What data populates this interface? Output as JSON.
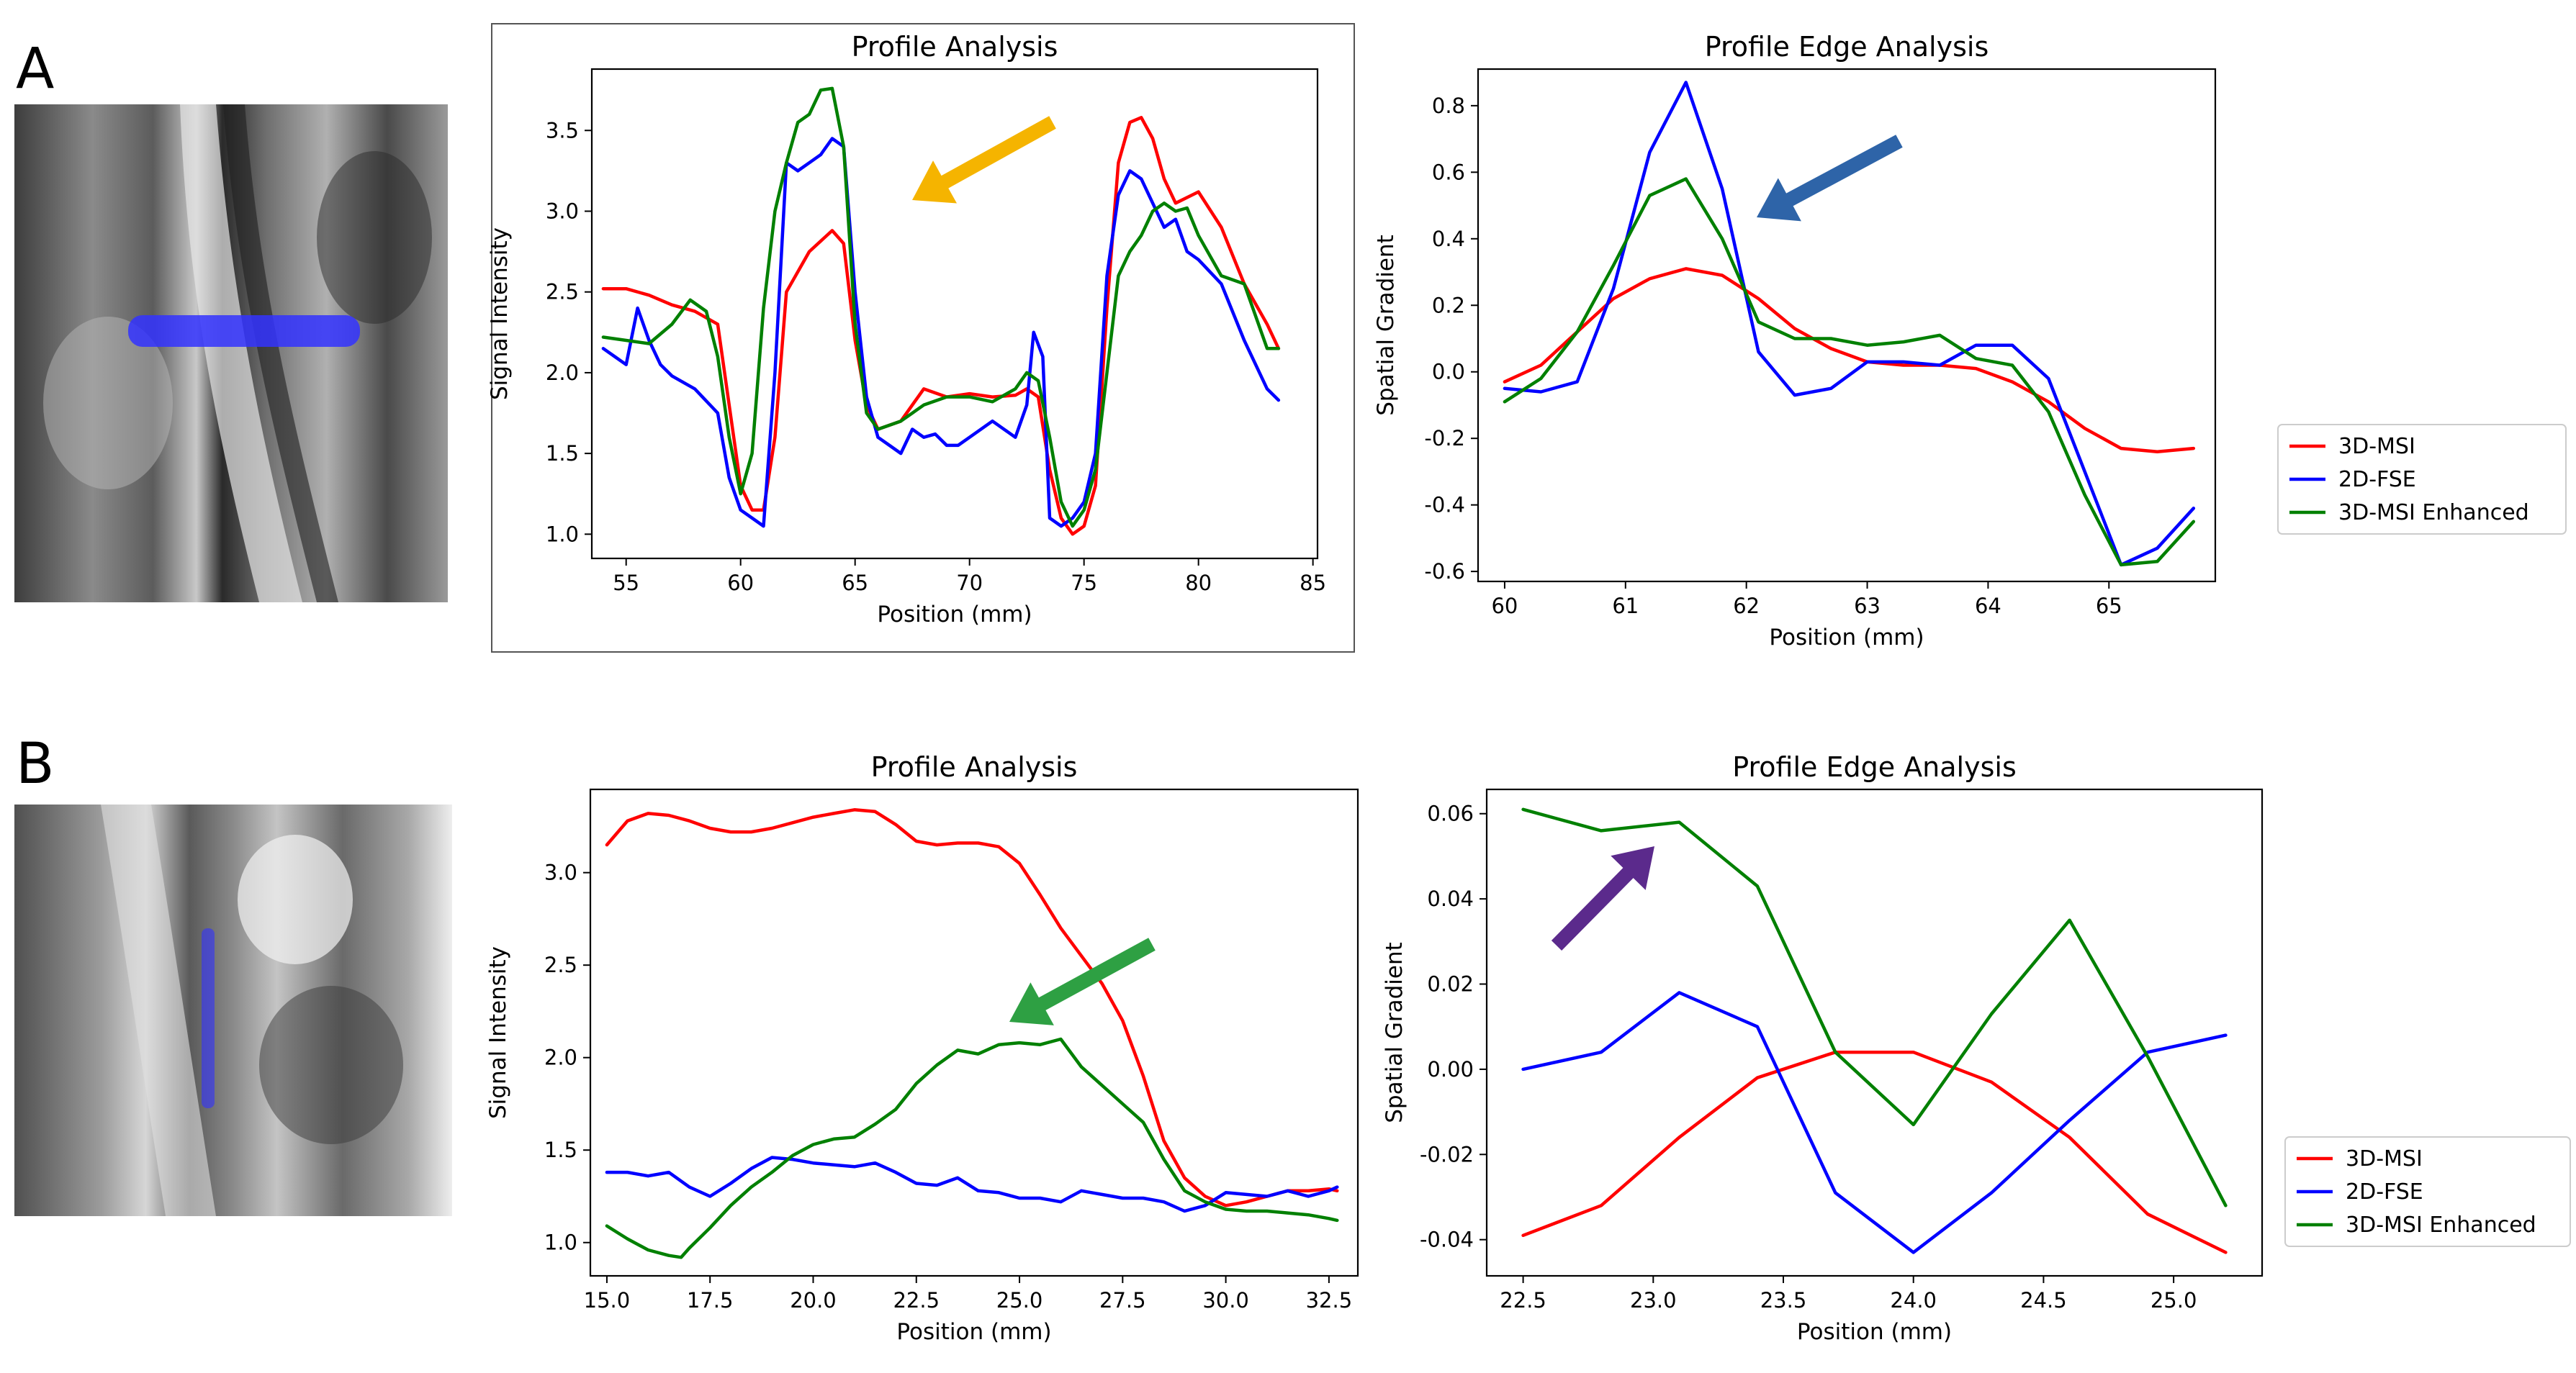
{
  "panels": {
    "a_label": "A",
    "b_label": "B"
  },
  "legend_labels": [
    "3D-MSI",
    "2D-FSE",
    "3D-MSI Enhanced"
  ],
  "colors": {
    "msi": "#ff0000",
    "fse": "#0000ff",
    "enhanced": "#008000",
    "arrow_orange": "#f5b400",
    "arrow_blue": "#2e64a8",
    "arrow_green": "#2ea043",
    "arrow_purple": "#5b2a8c",
    "profile_line": "#3232ff"
  },
  "chart_data": [
    {
      "id": "A1",
      "type": "line",
      "title": "Profile Analysis",
      "xlabel": "Position (mm)",
      "ylabel": "Signal Intensity",
      "xlim": [
        53.5,
        85.2
      ],
      "ylim": [
        0.85,
        3.88
      ],
      "xticks": [
        55,
        60,
        65,
        70,
        75,
        80,
        85
      ],
      "yticks": [
        1.0,
        1.5,
        2.0,
        2.5,
        3.0,
        3.5
      ],
      "legend": false,
      "series": [
        {
          "name": "3D-MSI",
          "color": "#ff0000",
          "x": [
            54,
            55,
            56,
            57,
            58,
            59,
            59.5,
            60,
            60.5,
            61,
            61.5,
            62,
            63,
            64,
            64.5,
            65,
            65.5,
            66,
            67,
            68,
            69,
            70,
            71,
            72,
            72.5,
            73,
            73.5,
            74,
            74.5,
            75,
            75.5,
            76,
            76.5,
            77,
            77.5,
            78,
            78.5,
            79,
            80,
            81,
            82,
            83,
            83.5
          ],
          "y": [
            2.52,
            2.52,
            2.48,
            2.42,
            2.38,
            2.3,
            1.8,
            1.3,
            1.15,
            1.15,
            1.6,
            2.5,
            2.75,
            2.88,
            2.8,
            2.2,
            1.8,
            1.65,
            1.7,
            1.9,
            1.85,
            1.87,
            1.85,
            1.86,
            1.9,
            1.85,
            1.4,
            1.1,
            1.0,
            1.05,
            1.3,
            2.4,
            3.3,
            3.55,
            3.58,
            3.45,
            3.2,
            3.05,
            3.12,
            2.9,
            2.55,
            2.3,
            2.15
          ]
        },
        {
          "name": "2D-FSE",
          "color": "#0000ff",
          "x": [
            54,
            54.5,
            55,
            55.5,
            56,
            56.5,
            57,
            58,
            59,
            59.5,
            60,
            60.5,
            61,
            61.5,
            62,
            62.5,
            63,
            63.5,
            64,
            64.5,
            65,
            65.5,
            66,
            66.5,
            67,
            67.5,
            68,
            68.5,
            69,
            69.5,
            70,
            71,
            72,
            72.5,
            72.8,
            73.2,
            73.5,
            74,
            74.5,
            75,
            75.5,
            76,
            76.5,
            77,
            77.5,
            78,
            78.5,
            79,
            79.5,
            80,
            81,
            82,
            83,
            83.5
          ],
          "y": [
            2.15,
            2.1,
            2.05,
            2.4,
            2.2,
            2.05,
            1.98,
            1.9,
            1.75,
            1.35,
            1.15,
            1.1,
            1.05,
            2.0,
            3.3,
            3.25,
            3.3,
            3.35,
            3.45,
            3.4,
            2.5,
            1.85,
            1.6,
            1.55,
            1.5,
            1.65,
            1.6,
            1.62,
            1.55,
            1.55,
            1.6,
            1.7,
            1.6,
            1.8,
            2.25,
            2.1,
            1.1,
            1.05,
            1.1,
            1.2,
            1.5,
            2.6,
            3.1,
            3.25,
            3.2,
            3.05,
            2.9,
            2.95,
            2.75,
            2.7,
            2.55,
            2.2,
            1.9,
            1.83
          ]
        },
        {
          "name": "3D-MSI Enhanced",
          "color": "#008000",
          "x": [
            54,
            55,
            56,
            57,
            57.8,
            58.5,
            59,
            59.5,
            60,
            60.5,
            61,
            61.5,
            62,
            62.5,
            63,
            63.5,
            64,
            64.5,
            65,
            65.5,
            66,
            67,
            68,
            69,
            70,
            71,
            72,
            72.5,
            73,
            73.5,
            74,
            74.5,
            75,
            75.5,
            76,
            76.5,
            77,
            77.5,
            78,
            78.5,
            79,
            79.5,
            80,
            81,
            82,
            83,
            83.5
          ],
          "y": [
            2.22,
            2.2,
            2.18,
            2.3,
            2.45,
            2.38,
            2.1,
            1.6,
            1.25,
            1.5,
            2.4,
            3.0,
            3.3,
            3.55,
            3.6,
            3.75,
            3.76,
            3.4,
            2.3,
            1.75,
            1.65,
            1.7,
            1.8,
            1.85,
            1.85,
            1.82,
            1.9,
            2.0,
            1.95,
            1.6,
            1.2,
            1.05,
            1.15,
            1.4,
            2.0,
            2.6,
            2.75,
            2.85,
            3.0,
            3.05,
            3.0,
            3.02,
            2.85,
            2.6,
            2.55,
            2.15,
            2.15
          ]
        }
      ]
    },
    {
      "id": "A2",
      "type": "line",
      "title": "Profile Edge Analysis",
      "xlabel": "Position (mm)",
      "ylabel": "Spatial Gradient",
      "xlim": [
        59.78,
        65.88
      ],
      "ylim": [
        -0.63,
        0.91
      ],
      "xticks": [
        60,
        61,
        62,
        63,
        64,
        65
      ],
      "yticks": [
        -0.6,
        -0.4,
        -0.2,
        0.0,
        0.2,
        0.4,
        0.6,
        0.8
      ],
      "legend": true,
      "series": [
        {
          "name": "3D-MSI",
          "color": "#ff0000",
          "x": [
            60.0,
            60.3,
            60.6,
            60.9,
            61.2,
            61.5,
            61.8,
            62.1,
            62.4,
            62.7,
            63.0,
            63.3,
            63.6,
            63.9,
            64.2,
            64.5,
            64.8,
            65.1,
            65.4,
            65.7
          ],
          "y": [
            -0.03,
            0.02,
            0.12,
            0.22,
            0.28,
            0.31,
            0.29,
            0.22,
            0.13,
            0.07,
            0.03,
            0.02,
            0.02,
            0.01,
            -0.03,
            -0.09,
            -0.17,
            -0.23,
            -0.24,
            -0.23
          ]
        },
        {
          "name": "2D-FSE",
          "color": "#0000ff",
          "x": [
            60.0,
            60.3,
            60.6,
            60.9,
            61.2,
            61.5,
            61.8,
            62.1,
            62.4,
            62.7,
            63.0,
            63.3,
            63.6,
            63.9,
            64.2,
            64.5,
            64.8,
            65.1,
            65.4,
            65.7
          ],
          "y": [
            -0.05,
            -0.06,
            -0.03,
            0.25,
            0.66,
            0.87,
            0.55,
            0.06,
            -0.07,
            -0.05,
            0.03,
            0.03,
            0.02,
            0.08,
            0.08,
            -0.02,
            -0.3,
            -0.58,
            -0.53,
            -0.41
          ]
        },
        {
          "name": "3D-MSI Enhanced",
          "color": "#008000",
          "x": [
            60.0,
            60.3,
            60.6,
            60.9,
            61.2,
            61.5,
            61.8,
            62.1,
            62.4,
            62.7,
            63.0,
            63.3,
            63.6,
            63.9,
            64.2,
            64.5,
            64.8,
            65.1,
            65.4,
            65.7
          ],
          "y": [
            -0.09,
            -0.02,
            0.12,
            0.32,
            0.53,
            0.58,
            0.4,
            0.15,
            0.1,
            0.1,
            0.08,
            0.09,
            0.11,
            0.04,
            0.02,
            -0.12,
            -0.37,
            -0.58,
            -0.57,
            -0.45
          ]
        }
      ]
    },
    {
      "id": "B1",
      "type": "line",
      "title": "Profile Analysis",
      "xlabel": "Position (mm)",
      "ylabel": "Signal Intensity",
      "xlim": [
        14.6,
        33.2
      ],
      "ylim": [
        0.82,
        3.45
      ],
      "xticks": [
        15.0,
        17.5,
        20.0,
        22.5,
        25.0,
        27.5,
        30.0,
        32.5
      ],
      "yticks": [
        1.0,
        1.5,
        2.0,
        2.5,
        3.0
      ],
      "legend": false,
      "series": [
        {
          "name": "3D-MSI",
          "color": "#ff0000",
          "x": [
            15.0,
            15.5,
            16.0,
            16.5,
            17.0,
            17.5,
            18.0,
            18.5,
            19.0,
            19.5,
            20.0,
            20.5,
            21.0,
            21.5,
            22.0,
            22.5,
            23.0,
            23.5,
            24.0,
            24.5,
            25.0,
            25.5,
            26.0,
            26.5,
            27.0,
            27.5,
            28.0,
            28.5,
            29.0,
            29.5,
            30.0,
            30.5,
            31.0,
            31.5,
            32.0,
            32.5,
            32.7
          ],
          "y": [
            3.15,
            3.28,
            3.32,
            3.31,
            3.28,
            3.24,
            3.22,
            3.22,
            3.24,
            3.27,
            3.3,
            3.32,
            3.34,
            3.33,
            3.26,
            3.17,
            3.15,
            3.16,
            3.16,
            3.14,
            3.05,
            2.88,
            2.7,
            2.55,
            2.4,
            2.2,
            1.9,
            1.55,
            1.35,
            1.25,
            1.2,
            1.22,
            1.25,
            1.28,
            1.28,
            1.29,
            1.28
          ]
        },
        {
          "name": "2D-FSE",
          "color": "#0000ff",
          "x": [
            15.0,
            15.5,
            16.0,
            16.5,
            17.0,
            17.5,
            18.0,
            18.5,
            19.0,
            19.5,
            20.0,
            20.5,
            21.0,
            21.5,
            22.0,
            22.5,
            23.0,
            23.5,
            24.0,
            24.5,
            25.0,
            25.5,
            26.0,
            26.5,
            27.0,
            27.5,
            28.0,
            28.5,
            29.0,
            29.5,
            30.0,
            30.5,
            31.0,
            31.5,
            32.0,
            32.5,
            32.7
          ],
          "y": [
            1.38,
            1.38,
            1.36,
            1.38,
            1.3,
            1.25,
            1.32,
            1.4,
            1.46,
            1.45,
            1.43,
            1.42,
            1.41,
            1.43,
            1.38,
            1.32,
            1.31,
            1.35,
            1.28,
            1.27,
            1.24,
            1.24,
            1.22,
            1.28,
            1.26,
            1.24,
            1.24,
            1.22,
            1.17,
            1.2,
            1.27,
            1.26,
            1.25,
            1.28,
            1.25,
            1.28,
            1.3
          ]
        },
        {
          "name": "3D-MSI Enhanced",
          "color": "#008000",
          "x": [
            15.0,
            15.5,
            16.0,
            16.5,
            16.8,
            17.0,
            17.5,
            18.0,
            18.5,
            19.0,
            19.5,
            20.0,
            20.5,
            21.0,
            21.5,
            22.0,
            22.5,
            23.0,
            23.5,
            24.0,
            24.5,
            25.0,
            25.5,
            26.0,
            26.5,
            27.0,
            27.5,
            28.0,
            28.5,
            29.0,
            29.5,
            30.0,
            30.5,
            31.0,
            31.5,
            32.0,
            32.5,
            32.7
          ],
          "y": [
            1.09,
            1.02,
            0.96,
            0.93,
            0.92,
            0.97,
            1.08,
            1.2,
            1.3,
            1.38,
            1.47,
            1.53,
            1.56,
            1.57,
            1.64,
            1.72,
            1.86,
            1.96,
            2.04,
            2.02,
            2.07,
            2.08,
            2.07,
            2.1,
            1.95,
            1.85,
            1.75,
            1.65,
            1.45,
            1.28,
            1.22,
            1.18,
            1.17,
            1.17,
            1.16,
            1.15,
            1.13,
            1.12
          ]
        }
      ]
    },
    {
      "id": "B2",
      "type": "line",
      "title": "Profile Edge Analysis",
      "xlabel": "Position (mm)",
      "ylabel": "Spatial Gradient",
      "xlim": [
        22.36,
        25.34
      ],
      "ylim": [
        -0.0485,
        0.0657
      ],
      "xticks": [
        22.5,
        23.0,
        23.5,
        24.0,
        24.5,
        25.0
      ],
      "yticks": [
        -0.04,
        -0.02,
        0.0,
        0.02,
        0.04,
        0.06
      ],
      "legend": true,
      "series": [
        {
          "name": "3D-MSI",
          "color": "#ff0000",
          "x": [
            22.5,
            22.8,
            23.1,
            23.4,
            23.7,
            24.0,
            24.3,
            24.6,
            24.9,
            25.2
          ],
          "y": [
            -0.039,
            -0.032,
            -0.016,
            -0.002,
            0.004,
            0.004,
            -0.003,
            -0.016,
            -0.034,
            -0.043
          ]
        },
        {
          "name": "2D-FSE",
          "color": "#0000ff",
          "x": [
            22.5,
            22.8,
            23.1,
            23.4,
            23.7,
            24.0,
            24.3,
            24.6,
            24.9,
            25.2
          ],
          "y": [
            0.0,
            0.004,
            0.018,
            0.01,
            -0.029,
            -0.043,
            -0.029,
            -0.012,
            0.004,
            0.008
          ]
        },
        {
          "name": "3D-MSI Enhanced",
          "color": "#008000",
          "x": [
            22.5,
            22.8,
            23.1,
            23.4,
            23.7,
            24.0,
            24.3,
            24.6,
            24.9,
            25.2
          ],
          "y": [
            0.061,
            0.056,
            0.058,
            0.043,
            0.004,
            -0.013,
            0.013,
            0.035,
            0.003,
            -0.032
          ]
        }
      ]
    }
  ]
}
